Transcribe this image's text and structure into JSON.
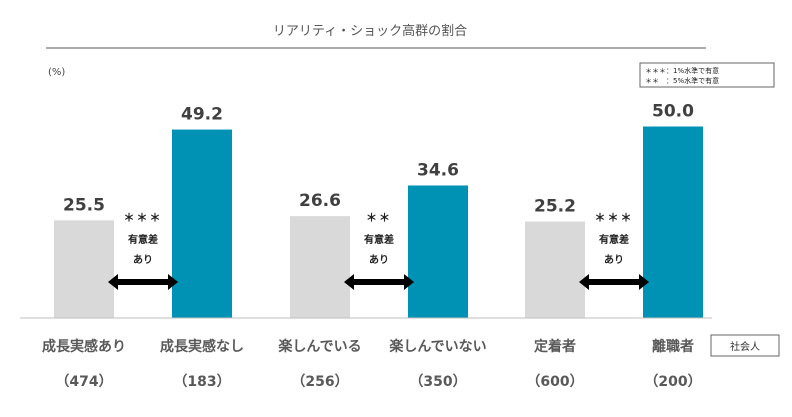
{
  "chart_data": {
    "type": "bar",
    "title": "リアリティ・ショック高群の割合",
    "ylabel": "(%)",
    "ylim": [
      0,
      60
    ],
    "categories": [
      "成長実感あり",
      "成長実感なし",
      "楽しんでいる",
      "楽しんでいない",
      "定着者",
      "離職者"
    ],
    "n_labels": [
      "（474）",
      "（183）",
      "（256）",
      "（350）",
      "（600）",
      "（200）"
    ],
    "values": [
      25.5,
      49.2,
      26.6,
      34.6,
      25.2,
      50.0
    ],
    "value_labels": [
      "25.5",
      "49.2",
      "26.6",
      "34.6",
      "25.2",
      "50.0"
    ],
    "bar_colors": [
      "#d9d9d9",
      "#0092b4",
      "#d9d9d9",
      "#0092b4",
      "#d9d9d9",
      "#0092b4"
    ],
    "significance": [
      {
        "stars": "＊＊＊",
        "text1": "有意差",
        "text2": "あり"
      },
      {
        "stars": "＊＊",
        "text1": "有意差",
        "text2": "あり"
      },
      {
        "stars": "＊＊＊",
        "text1": "有意差",
        "text2": "あり"
      }
    ],
    "legend": {
      "line1": "＊＊＊：1%水準で有意",
      "line2": "＊＊　：5%水準で有意"
    },
    "badge": "社会人",
    "grid": false
  }
}
